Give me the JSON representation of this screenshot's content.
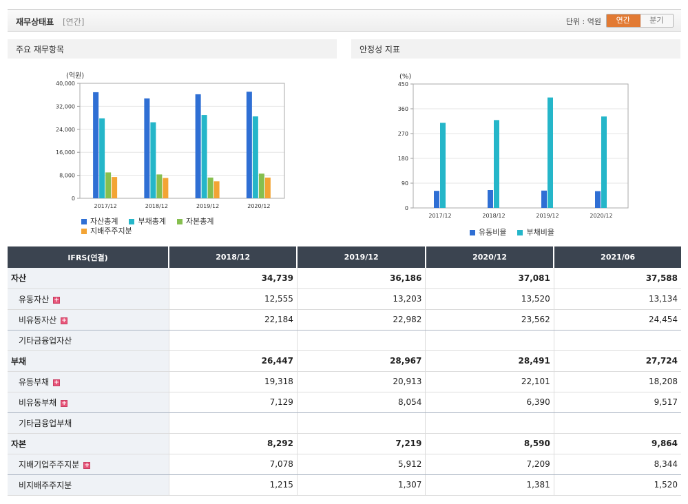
{
  "header": {
    "title": "재무상태표",
    "period_tag": "[연간]",
    "unit_label": "단위 : 억원",
    "toggle": {
      "annual": "연간",
      "quarterly": "분기"
    }
  },
  "panels": {
    "left_title": "주요 재무항목",
    "right_title": "안정성 지표"
  },
  "chart_data": [
    {
      "type": "bar",
      "title": "주요 재무항목",
      "ylabel": "(억원)",
      "ylim": [
        0,
        40000
      ],
      "yticks": [
        "40,000",
        "32,000",
        "24,000",
        "16,000",
        "8,000",
        "0"
      ],
      "categories": [
        "2017/12",
        "2018/12",
        "2019/12",
        "2020/12"
      ],
      "series": [
        {
          "name": "자산총계",
          "color": "#2f6fd4",
          "values": [
            36900,
            34739,
            36186,
            37081
          ]
        },
        {
          "name": "부채총계",
          "color": "#25b6c9",
          "values": [
            27800,
            26447,
            28967,
            28491
          ]
        },
        {
          "name": "자본총계",
          "color": "#86bf4f",
          "values": [
            9000,
            8292,
            7219,
            8590
          ]
        },
        {
          "name": "지배주주지분",
          "color": "#f3a434",
          "values": [
            7400,
            7078,
            5912,
            7209
          ]
        }
      ]
    },
    {
      "type": "bar",
      "title": "안정성 지표",
      "ylabel": "(%)",
      "ylim": [
        0,
        450
      ],
      "yticks": [
        "450",
        "360",
        "270",
        "180",
        "90",
        "0"
      ],
      "categories": [
        "2017/12",
        "2018/12",
        "2019/12",
        "2020/12"
      ],
      "series": [
        {
          "name": "유동비율",
          "color": "#2f6fd4",
          "values": [
            62,
            65,
            63,
            61
          ]
        },
        {
          "name": "부채비율",
          "color": "#25b6c9",
          "values": [
            309,
            319,
            401,
            332
          ]
        }
      ]
    }
  ],
  "table": {
    "header": [
      "IFRS(연결)",
      "2018/12",
      "2019/12",
      "2020/12",
      "2021/06"
    ],
    "rows": [
      {
        "label": "자산",
        "values": [
          "34,739",
          "36,186",
          "37,081",
          "37,588"
        ],
        "total": true,
        "sub": false,
        "plus": false,
        "sep": false
      },
      {
        "label": "유동자산",
        "values": [
          "12,555",
          "13,203",
          "13,520",
          "13,134"
        ],
        "total": false,
        "sub": true,
        "plus": true,
        "sep": false
      },
      {
        "label": "비유동자산",
        "values": [
          "22,184",
          "22,982",
          "23,562",
          "24,454"
        ],
        "total": false,
        "sub": true,
        "plus": true,
        "sep": true
      },
      {
        "label": "기타금융업자산",
        "values": [
          "",
          "",
          "",
          ""
        ],
        "total": false,
        "sub": true,
        "plus": false,
        "sep": false
      },
      {
        "label": "부채",
        "values": [
          "26,447",
          "28,967",
          "28,491",
          "27,724"
        ],
        "total": true,
        "sub": false,
        "plus": false,
        "sep": false
      },
      {
        "label": "유동부채",
        "values": [
          "19,318",
          "20,913",
          "22,101",
          "18,208"
        ],
        "total": false,
        "sub": true,
        "plus": true,
        "sep": false
      },
      {
        "label": "비유동부채",
        "values": [
          "7,129",
          "8,054",
          "6,390",
          "9,517"
        ],
        "total": false,
        "sub": true,
        "plus": true,
        "sep": true
      },
      {
        "label": "기타금융업부채",
        "values": [
          "",
          "",
          "",
          ""
        ],
        "total": false,
        "sub": true,
        "plus": false,
        "sep": false
      },
      {
        "label": "자본",
        "values": [
          "8,292",
          "7,219",
          "8,590",
          "9,864"
        ],
        "total": true,
        "sub": false,
        "plus": false,
        "sep": false
      },
      {
        "label": "지배기업주주지분",
        "values": [
          "7,078",
          "5,912",
          "7,209",
          "8,344"
        ],
        "total": false,
        "sub": true,
        "plus": true,
        "sep": true
      },
      {
        "label": "비지배주주지분",
        "values": [
          "1,215",
          "1,307",
          "1,381",
          "1,520"
        ],
        "total": false,
        "sub": true,
        "plus": false,
        "sep": false
      }
    ]
  }
}
